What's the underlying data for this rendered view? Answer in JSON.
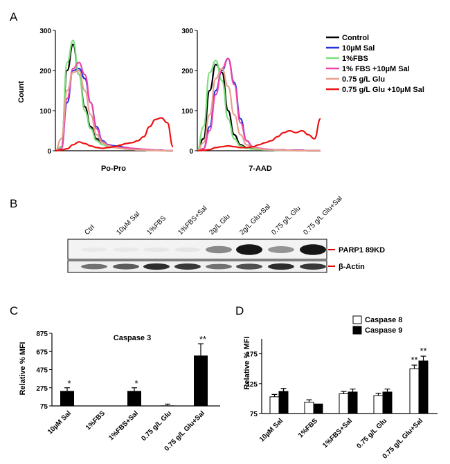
{
  "panels": {
    "A": "A",
    "B": "B",
    "C": "C",
    "D": "D"
  },
  "panel_a": {
    "ylabel": "Count",
    "yticks": [
      0,
      100,
      200,
      300
    ],
    "legend": [
      {
        "label": "Control",
        "color": "#000000"
      },
      {
        "label": "10µM Sal",
        "color": "#2233dd"
      },
      {
        "label": "1%FBS",
        "color": "#7ddf7d"
      },
      {
        "label": "1% FBS +10µM Sal",
        "color": "#ee44aa"
      },
      {
        "label": "0.75 g/L Glu",
        "color": "#e8a08c"
      },
      {
        "label": "0.75 g/L Glu +10µM Sal",
        "color": "#ee1111"
      }
    ],
    "plots": [
      {
        "xlabel": "Po-Pro"
      },
      {
        "xlabel": "7-AAD"
      }
    ]
  },
  "panel_b": {
    "lanes": [
      "Ctrl",
      "10µM Sal",
      "1%FBS",
      "1%FBS+Sal",
      "2g/L Glu",
      "2g/L Glu+Sal",
      "0.75 g/L Glu",
      "0.75 g/L Glu+Sal"
    ],
    "bands": [
      "PARP1 89KD",
      "β-Actin"
    ],
    "marker_color": "#dd0000",
    "parp_intensity": [
      0.03,
      0.03,
      0.04,
      0.05,
      0.45,
      0.95,
      0.4,
      0.95
    ],
    "actin_intensity": [
      0.55,
      0.65,
      0.85,
      0.8,
      0.55,
      0.7,
      0.85,
      0.8
    ]
  },
  "chart_data": [
    {
      "type": "line",
      "panel": "A-left",
      "title": "",
      "xlabel": "Po-Pro",
      "ylabel": "Count",
      "ylim": [
        0,
        300
      ],
      "x": [
        0,
        0.05,
        0.1,
        0.15,
        0.2,
        0.25,
        0.3,
        0.35,
        0.4,
        0.45,
        0.5,
        0.55,
        0.6,
        0.65,
        0.7,
        0.75,
        0.8,
        0.85,
        0.9,
        0.95,
        1
      ],
      "series": [
        {
          "name": "Control",
          "color": "#000000",
          "values": [
            0,
            10,
            200,
            265,
            190,
            110,
            60,
            30,
            20,
            14,
            12,
            10,
            8,
            5,
            4,
            3,
            2,
            1,
            1,
            0,
            0
          ]
        },
        {
          "name": "10µM Sal",
          "color": "#2233dd",
          "values": [
            0,
            5,
            120,
            200,
            205,
            180,
            120,
            60,
            25,
            15,
            12,
            10,
            8,
            5,
            4,
            3,
            2,
            1,
            1,
            0,
            0
          ]
        },
        {
          "name": "1%FBS",
          "color": "#7ddf7d",
          "values": [
            0,
            10,
            220,
            275,
            190,
            100,
            55,
            25,
            15,
            10,
            8,
            6,
            5,
            3,
            2,
            2,
            1,
            1,
            0,
            0,
            0
          ]
        },
        {
          "name": "1% FBS +10µM Sal",
          "color": "#ee44aa",
          "values": [
            0,
            5,
            130,
            205,
            220,
            190,
            120,
            55,
            22,
            14,
            10,
            8,
            8,
            6,
            5,
            4,
            3,
            2,
            1,
            0,
            0
          ]
        },
        {
          "name": "0.75 g/L Glu",
          "color": "#e8a08c",
          "values": [
            0,
            30,
            150,
            195,
            200,
            150,
            90,
            40,
            20,
            12,
            8,
            6,
            4,
            3,
            2,
            2,
            1,
            1,
            0,
            0,
            0
          ]
        },
        {
          "name": "0.75 g/L Glu +10µM Sal",
          "color": "#ee1111",
          "values": [
            0,
            2,
            5,
            15,
            22,
            18,
            12,
            8,
            6,
            8,
            10,
            14,
            18,
            20,
            25,
            35,
            60,
            78,
            82,
            70,
            10
          ]
        }
      ]
    },
    {
      "type": "line",
      "panel": "A-right",
      "title": "",
      "xlabel": "7-AAD",
      "ylabel": "",
      "ylim": [
        0,
        300
      ],
      "x": [
        0,
        0.05,
        0.1,
        0.15,
        0.2,
        0.25,
        0.3,
        0.35,
        0.4,
        0.45,
        0.5,
        0.55,
        0.6,
        0.65,
        0.7,
        0.75,
        0.8,
        0.85,
        0.9,
        0.95,
        1
      ],
      "series": [
        {
          "name": "Control",
          "color": "#000000",
          "values": [
            0,
            30,
            150,
            215,
            195,
            100,
            40,
            15,
            8,
            5,
            4,
            3,
            3,
            2,
            2,
            1,
            1,
            1,
            0,
            0,
            0
          ]
        },
        {
          "name": "10µM Sal",
          "color": "#2233dd",
          "values": [
            0,
            5,
            60,
            150,
            200,
            230,
            170,
            80,
            25,
            10,
            6,
            4,
            3,
            2,
            2,
            1,
            1,
            1,
            0,
            0,
            0
          ]
        },
        {
          "name": "1%FBS",
          "color": "#7ddf7d",
          "values": [
            0,
            60,
            195,
            225,
            175,
            80,
            30,
            12,
            6,
            4,
            3,
            2,
            2,
            1,
            1,
            1,
            0,
            0,
            0,
            0,
            0
          ]
        },
        {
          "name": "1% FBS +10µM Sal",
          "color": "#ee44aa",
          "values": [
            0,
            5,
            50,
            140,
            205,
            230,
            165,
            70,
            25,
            10,
            6,
            4,
            3,
            2,
            2,
            1,
            1,
            1,
            0,
            0,
            0
          ]
        },
        {
          "name": "0.75 g/L Glu",
          "color": "#e8a08c",
          "values": [
            0,
            20,
            90,
            180,
            205,
            160,
            90,
            40,
            15,
            8,
            5,
            3,
            2,
            2,
            1,
            1,
            0,
            0,
            0,
            0,
            0
          ]
        },
        {
          "name": "0.75 g/L Glu +10µM Sal",
          "color": "#ee1111",
          "values": [
            0,
            1,
            3,
            8,
            10,
            12,
            10,
            8,
            8,
            10,
            15,
            20,
            25,
            35,
            45,
            50,
            45,
            50,
            40,
            30,
            80
          ]
        }
      ]
    },
    {
      "type": "bar",
      "panel": "C",
      "title": "Caspase 3",
      "xlabel": "",
      "ylabel": "Relative % MFI",
      "ylim": [
        75,
        875
      ],
      "yticks": [
        75,
        275,
        475,
        675,
        875
      ],
      "categories": [
        "10µM Sal",
        "1%FBS",
        "1%FBS+Sal",
        "0.75 g/L Glu",
        "0.75 g/L Glu+Sal"
      ],
      "values": [
        240,
        78,
        240,
        80,
        630
      ],
      "errors": [
        35,
        0,
        35,
        15,
        130
      ],
      "significance": [
        "*",
        "",
        "*",
        "",
        "**"
      ]
    },
    {
      "type": "bar",
      "panel": "D",
      "title": "",
      "xlabel": "",
      "ylabel": "Relative % MFI",
      "ylim": [
        75,
        200
      ],
      "yticks": [
        75,
        125,
        175
      ],
      "legend_position": "top-right",
      "categories": [
        "10µM Sal",
        "1%FBS",
        "1%FBS+Sal",
        "0.75 g/L Glu",
        "0.75 g/L Glu+Sal"
      ],
      "series": [
        {
          "name": "Caspase 8",
          "fill": "#ffffff",
          "values": [
            103,
            94,
            108,
            105,
            150
          ],
          "errors": [
            4,
            4,
            4,
            4,
            6
          ],
          "significance": [
            "",
            "",
            "",
            "",
            "**"
          ]
        },
        {
          "name": "Caspase 9",
          "fill": "#000000",
          "values": [
            112,
            91,
            111,
            111,
            163
          ],
          "errors": [
            5,
            4,
            5,
            5,
            8
          ],
          "significance": [
            "",
            "",
            "",
            "",
            "**"
          ]
        }
      ]
    }
  ]
}
